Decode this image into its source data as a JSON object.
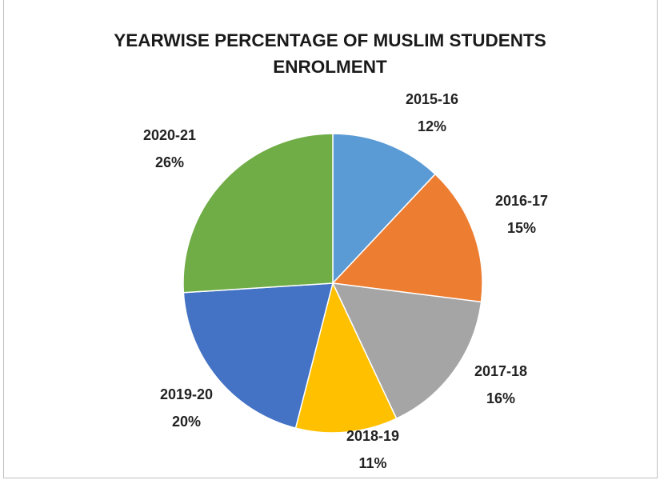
{
  "chart_data": {
    "type": "pie",
    "title_lines": [
      "YEARWISE PERCENTAGE OF MUSLIM STUDENTS",
      "ENROLMENT"
    ],
    "categories": [
      "2015-16",
      "2016-17",
      "2017-18",
      "2018-19",
      "2019-20",
      "2020-21"
    ],
    "values": [
      12,
      15,
      16,
      11,
      20,
      26
    ],
    "value_labels": [
      "12%",
      "15%",
      "16%",
      "11%",
      "20%",
      "26%"
    ],
    "colors": [
      "#5b9bd5",
      "#ed7d31",
      "#a5a5a5",
      "#ffc000",
      "#4472c4",
      "#70ad47"
    ],
    "legend": "none",
    "data_labels": "outside"
  }
}
